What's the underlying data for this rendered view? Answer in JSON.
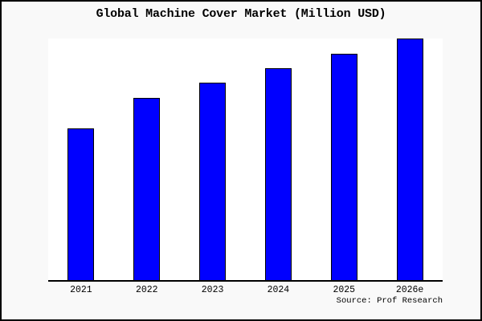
{
  "chart": {
    "title": "Global Machine Cover Market (Million USD)",
    "source": "Source: Prof Research"
  },
  "chart_data": {
    "type": "bar",
    "title": "Global Machine Cover Market (Million USD)",
    "categories": [
      "2021",
      "2022",
      "2023",
      "2024",
      "2025",
      "2026e"
    ],
    "values": [
      62.8,
      75.4,
      81.7,
      87.7,
      93.7,
      100
    ],
    "values_note": "y-axis has no tick labels or gridlines; values are relative bar heights normalized so the tallest bar (2026e) = 100",
    "xlabel": "",
    "ylabel": "",
    "ylim": [
      0,
      100
    ],
    "grid": false,
    "legend": "none",
    "bar_color": "#0000ff",
    "bar_edge_color": "#000000",
    "background_color": "#f9f9f9",
    "plot_background_color": "#ffffff",
    "annotation": "Source: Prof Research"
  }
}
